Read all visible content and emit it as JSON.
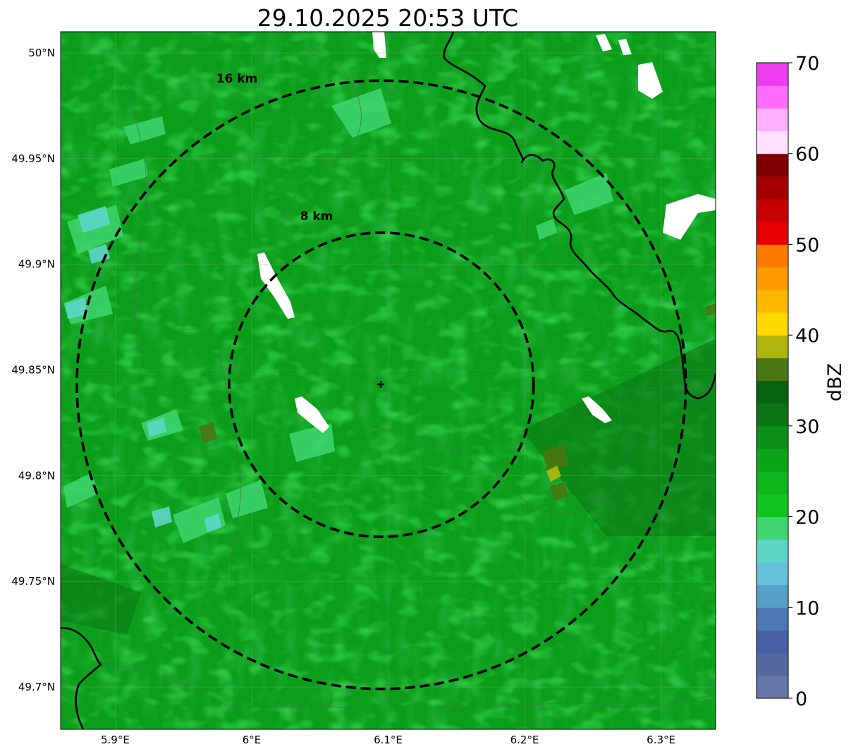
{
  "title": "29.10.2025 20:53 UTC",
  "map": {
    "lon_range": [
      5.86,
      6.34
    ],
    "lat_range": [
      49.68,
      50.01
    ],
    "radar_center": {
      "lon": 6.095,
      "lat": 49.843
    },
    "background_color": "#0c9e1b",
    "lat_ticks": [
      {
        "value": 50.0,
        "label": "50°N"
      },
      {
        "value": 49.95,
        "label": "49.95°N"
      },
      {
        "value": 49.9,
        "label": "49.9°N"
      },
      {
        "value": 49.85,
        "label": "49.85°N"
      },
      {
        "value": 49.8,
        "label": "49.8°N"
      },
      {
        "value": 49.75,
        "label": "49.75°N"
      },
      {
        "value": 49.7,
        "label": "49.7°N"
      }
    ],
    "lon_ticks": [
      {
        "value": 5.9,
        "label": "5.9°E"
      },
      {
        "value": 6.0,
        "label": "6°E"
      },
      {
        "value": 6.1,
        "label": "6.1°E"
      },
      {
        "value": 6.2,
        "label": "6.2°E"
      },
      {
        "value": 6.3,
        "label": "6.3°E"
      }
    ],
    "range_rings": [
      {
        "radius_km": 8,
        "label": "8 km"
      },
      {
        "radius_km": 16,
        "label": "16 km"
      }
    ]
  },
  "colorbar": {
    "label": "dBZ",
    "min": 0,
    "max": 70,
    "tick_values": [
      0,
      10,
      20,
      30,
      40,
      50,
      60,
      70
    ],
    "tick_labels": [
      "0",
      "10",
      "20",
      "30",
      "40",
      "50",
      "60",
      "70"
    ],
    "colors": [
      "#6577a9",
      "#5668a0",
      "#4860a6",
      "#4a79b4",
      "#569fc8",
      "#68c1db",
      "#5ed6c7",
      "#3ed670",
      "#10c51e",
      "#0db61b",
      "#0ca51a",
      "#0c8f18",
      "#0b7415",
      "#06620e",
      "#4a7711",
      "#b0b50e",
      "#ffd800",
      "#ffb700",
      "#ff9a00",
      "#ff7a00",
      "#e50000",
      "#c70000",
      "#a50000",
      "#7e0000",
      "#ffe0ff",
      "#ffb0ff",
      "#ff6cff",
      "#f03cf0"
    ]
  }
}
